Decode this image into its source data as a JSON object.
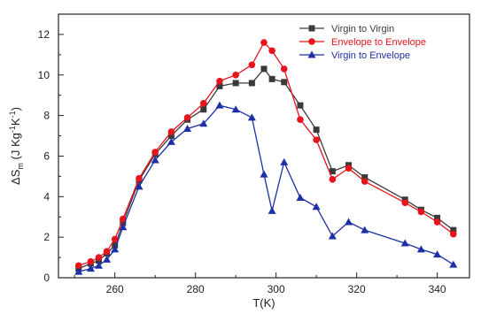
{
  "chart_data": {
    "type": "line",
    "title": "",
    "xlabel": "T(K)",
    "ylabel": {
      "base": "ΔS",
      "sub": "m",
      "unit_open": " (J Kg",
      "unit_sup1": "-1",
      "unit_mid": "K",
      "unit_sup2": "-1",
      "unit_close": ")"
    },
    "xlim": [
      246,
      348
    ],
    "ylim": [
      0,
      13
    ],
    "xticks": [
      260,
      280,
      300,
      320,
      340
    ],
    "yticks": [
      0,
      2,
      4,
      6,
      8,
      10,
      12
    ],
    "legend_position": "top-right",
    "grid": false,
    "series": [
      {
        "name": "Virgin to Virgin",
        "color": "#3a3a3a",
        "marker": "square",
        "x": [
          251,
          254,
          256,
          258,
          260,
          262,
          266,
          270,
          274,
          278,
          282,
          286,
          290,
          294,
          297,
          299,
          302,
          306,
          310,
          314,
          318,
          322,
          332,
          336,
          340,
          344
        ],
        "y": [
          0.45,
          0.7,
          0.85,
          1.2,
          1.6,
          2.7,
          4.8,
          6.1,
          7.0,
          7.8,
          8.3,
          9.45,
          9.6,
          9.6,
          10.3,
          9.8,
          9.65,
          8.5,
          7.3,
          5.25,
          5.55,
          4.95,
          3.85,
          3.35,
          2.95,
          2.35
        ]
      },
      {
        "name": "Envelope to Envelope",
        "color": "#e8141c",
        "marker": "circle",
        "x": [
          251,
          254,
          256,
          258,
          260,
          262,
          266,
          270,
          274,
          278,
          282,
          286,
          290,
          294,
          297,
          299,
          302,
          306,
          310,
          314,
          318,
          322,
          332,
          336,
          340,
          344
        ],
        "y": [
          0.6,
          0.8,
          1.0,
          1.3,
          1.9,
          2.9,
          4.9,
          6.2,
          7.2,
          7.9,
          8.6,
          9.7,
          10.0,
          10.5,
          11.6,
          11.2,
          10.3,
          7.8,
          6.8,
          4.85,
          5.4,
          4.75,
          3.7,
          3.25,
          2.75,
          2.15
        ]
      },
      {
        "name": "Virgin to Envelope",
        "color": "#1c2fa5",
        "marker": "triangle",
        "x": [
          251,
          254,
          256,
          258,
          260,
          262,
          266,
          270,
          274,
          278,
          282,
          286,
          290,
          294,
          297,
          299,
          302,
          306,
          310,
          314,
          318,
          322,
          332,
          336,
          340,
          344
        ],
        "y": [
          0.3,
          0.45,
          0.6,
          0.9,
          1.4,
          2.5,
          4.5,
          5.8,
          6.7,
          7.35,
          7.6,
          8.5,
          8.3,
          7.9,
          5.1,
          3.3,
          5.7,
          3.95,
          3.5,
          2.05,
          2.75,
          2.35,
          1.7,
          1.4,
          1.15,
          0.65
        ]
      }
    ]
  }
}
